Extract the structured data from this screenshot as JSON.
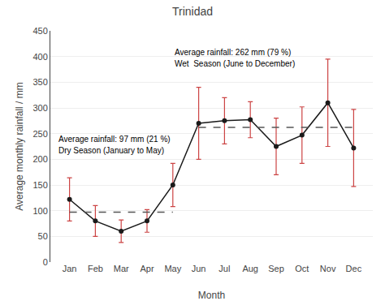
{
  "chart_data": {
    "type": "line",
    "title": "Trinidad",
    "xlabel": "Month",
    "ylabel": "Average monthly rainfall / mm",
    "categories": [
      "Jan",
      "Feb",
      "Mar",
      "Apr",
      "May",
      "Jun",
      "Jul",
      "Aug",
      "Sep",
      "Oct",
      "Nov",
      "Dec"
    ],
    "series": [
      {
        "values": [
          122,
          80,
          60,
          80,
          150,
          270,
          275,
          277,
          225,
          247,
          310,
          222
        ],
        "errors": {
          "values": [
            42,
            30,
            22,
            22,
            42,
            70,
            45,
            35,
            55,
            55,
            85,
            75
          ],
          "color": "#cc4444"
        },
        "color": "#1a1a1a",
        "marker": "circle",
        "line_style": "solid"
      },
      {
        "values": [
          97,
          97,
          97,
          97,
          97,
          null,
          null,
          null,
          null,
          null,
          null,
          null
        ],
        "color": "#555555",
        "line_style": "dashed"
      },
      {
        "values": [
          null,
          null,
          null,
          null,
          null,
          262,
          262,
          262,
          262,
          262,
          262,
          262
        ],
        "color": "#555555",
        "line_style": "dashed"
      }
    ],
    "annotations": [
      {
        "text": "Average rainfall: 97 mm (21 %)"
      },
      {
        "text": "Dry Season (January to May)"
      },
      {
        "text": "Average rainfall: 262 mm (79 %)"
      },
      {
        "text": "Wet  Season (June to December)"
      }
    ],
    "ylim": [
      0,
      450
    ],
    "yticks": [
      0,
      50,
      100,
      150,
      200,
      250,
      300,
      350,
      400,
      450
    ],
    "grid": true
  }
}
